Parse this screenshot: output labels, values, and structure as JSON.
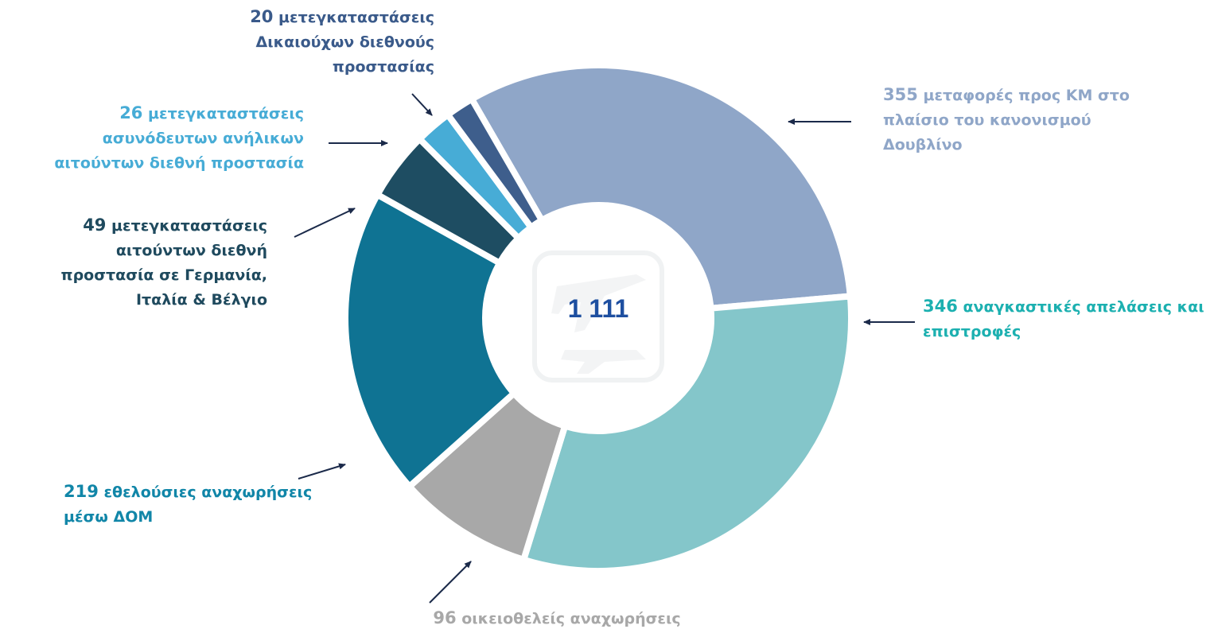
{
  "chart_data": {
    "type": "donut",
    "center_label": "1 111",
    "categories": [
      "μεταφορές προς ΚΜ στο πλαίσιο του κανονισμού Δουβλίνο",
      "αναγκαστικές απελάσεις και επιστροφές",
      "οικειοθελείς αναχωρήσεις",
      "εθελούσιες αναχωρήσεις μέσω ΔΟΜ",
      "μετεγκαταστάσεις αιτούντων διεθνή προστασία σε Γερμανία, Ιταλία & Βέλγιο",
      "μετεγκαταστάσεις ασυνόδευτων ανήλικων αιτούντων διεθνή προστασία",
      "μετεγκαταστάσεις Δικαιούχων διεθνούς προστασίας"
    ],
    "values": [
      355,
      346,
      96,
      219,
      49,
      26,
      20
    ],
    "colors": [
      "#8fa6c8",
      "#84c6ca",
      "#a8a8a8",
      "#0f7393",
      "#1e4d62",
      "#47acd6",
      "#3e5e8c"
    ],
    "label_colors": [
      "#8fa6c8",
      "#1cb0b0",
      "#a8a8a8",
      "#1186a8",
      "#1f4a5e",
      "#47acd6",
      "#3a5a8a"
    ]
  }
}
